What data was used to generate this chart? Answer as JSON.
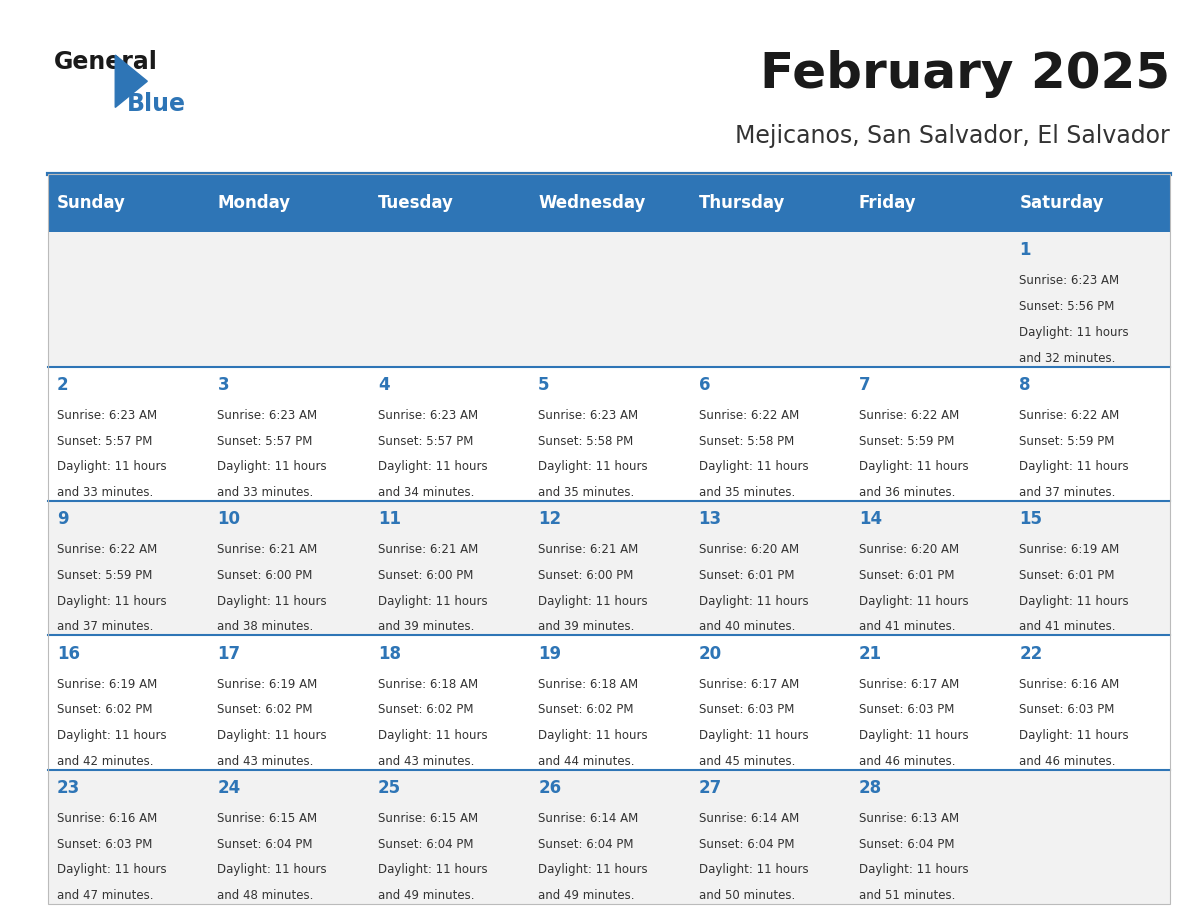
{
  "title": "February 2025",
  "subtitle": "Mejicanos, San Salvador, El Salvador",
  "header_bg": "#2E75B6",
  "header_text_color": "#FFFFFF",
  "cell_bg_odd": "#F2F2F2",
  "cell_bg_even": "#FFFFFF",
  "day_number_color": "#2E75B6",
  "cell_text_color": "#333333",
  "separator_color": "#2E75B6",
  "days_of_week": [
    "Sunday",
    "Monday",
    "Tuesday",
    "Wednesday",
    "Thursday",
    "Friday",
    "Saturday"
  ],
  "weeks": [
    [
      {
        "day": "",
        "sunrise": "",
        "sunset": "",
        "daylight": ""
      },
      {
        "day": "",
        "sunrise": "",
        "sunset": "",
        "daylight": ""
      },
      {
        "day": "",
        "sunrise": "",
        "sunset": "",
        "daylight": ""
      },
      {
        "day": "",
        "sunrise": "",
        "sunset": "",
        "daylight": ""
      },
      {
        "day": "",
        "sunrise": "",
        "sunset": "",
        "daylight": ""
      },
      {
        "day": "",
        "sunrise": "",
        "sunset": "",
        "daylight": ""
      },
      {
        "day": "1",
        "sunrise": "6:23 AM",
        "sunset": "5:56 PM",
        "daylight": "11 hours|and 32 minutes."
      }
    ],
    [
      {
        "day": "2",
        "sunrise": "6:23 AM",
        "sunset": "5:57 PM",
        "daylight": "11 hours|and 33 minutes."
      },
      {
        "day": "3",
        "sunrise": "6:23 AM",
        "sunset": "5:57 PM",
        "daylight": "11 hours|and 33 minutes."
      },
      {
        "day": "4",
        "sunrise": "6:23 AM",
        "sunset": "5:57 PM",
        "daylight": "11 hours|and 34 minutes."
      },
      {
        "day": "5",
        "sunrise": "6:23 AM",
        "sunset": "5:58 PM",
        "daylight": "11 hours|and 35 minutes."
      },
      {
        "day": "6",
        "sunrise": "6:22 AM",
        "sunset": "5:58 PM",
        "daylight": "11 hours|and 35 minutes."
      },
      {
        "day": "7",
        "sunrise": "6:22 AM",
        "sunset": "5:59 PM",
        "daylight": "11 hours|and 36 minutes."
      },
      {
        "day": "8",
        "sunrise": "6:22 AM",
        "sunset": "5:59 PM",
        "daylight": "11 hours|and 37 minutes."
      }
    ],
    [
      {
        "day": "9",
        "sunrise": "6:22 AM",
        "sunset": "5:59 PM",
        "daylight": "11 hours|and 37 minutes."
      },
      {
        "day": "10",
        "sunrise": "6:21 AM",
        "sunset": "6:00 PM",
        "daylight": "11 hours|and 38 minutes."
      },
      {
        "day": "11",
        "sunrise": "6:21 AM",
        "sunset": "6:00 PM",
        "daylight": "11 hours|and 39 minutes."
      },
      {
        "day": "12",
        "sunrise": "6:21 AM",
        "sunset": "6:00 PM",
        "daylight": "11 hours|and 39 minutes."
      },
      {
        "day": "13",
        "sunrise": "6:20 AM",
        "sunset": "6:01 PM",
        "daylight": "11 hours|and 40 minutes."
      },
      {
        "day": "14",
        "sunrise": "6:20 AM",
        "sunset": "6:01 PM",
        "daylight": "11 hours|and 41 minutes."
      },
      {
        "day": "15",
        "sunrise": "6:19 AM",
        "sunset": "6:01 PM",
        "daylight": "11 hours|and 41 minutes."
      }
    ],
    [
      {
        "day": "16",
        "sunrise": "6:19 AM",
        "sunset": "6:02 PM",
        "daylight": "11 hours|and 42 minutes."
      },
      {
        "day": "17",
        "sunrise": "6:19 AM",
        "sunset": "6:02 PM",
        "daylight": "11 hours|and 43 minutes."
      },
      {
        "day": "18",
        "sunrise": "6:18 AM",
        "sunset": "6:02 PM",
        "daylight": "11 hours|and 43 minutes."
      },
      {
        "day": "19",
        "sunrise": "6:18 AM",
        "sunset": "6:02 PM",
        "daylight": "11 hours|and 44 minutes."
      },
      {
        "day": "20",
        "sunrise": "6:17 AM",
        "sunset": "6:03 PM",
        "daylight": "11 hours|and 45 minutes."
      },
      {
        "day": "21",
        "sunrise": "6:17 AM",
        "sunset": "6:03 PM",
        "daylight": "11 hours|and 46 minutes."
      },
      {
        "day": "22",
        "sunrise": "6:16 AM",
        "sunset": "6:03 PM",
        "daylight": "11 hours|and 46 minutes."
      }
    ],
    [
      {
        "day": "23",
        "sunrise": "6:16 AM",
        "sunset": "6:03 PM",
        "daylight": "11 hours|and 47 minutes."
      },
      {
        "day": "24",
        "sunrise": "6:15 AM",
        "sunset": "6:04 PM",
        "daylight": "11 hours|and 48 minutes."
      },
      {
        "day": "25",
        "sunrise": "6:15 AM",
        "sunset": "6:04 PM",
        "daylight": "11 hours|and 49 minutes."
      },
      {
        "day": "26",
        "sunrise": "6:14 AM",
        "sunset": "6:04 PM",
        "daylight": "11 hours|and 49 minutes."
      },
      {
        "day": "27",
        "sunrise": "6:14 AM",
        "sunset": "6:04 PM",
        "daylight": "11 hours|and 50 minutes."
      },
      {
        "day": "28",
        "sunrise": "6:13 AM",
        "sunset": "6:04 PM",
        "daylight": "11 hours|and 51 minutes."
      },
      {
        "day": "",
        "sunrise": "",
        "sunset": "",
        "daylight": ""
      }
    ]
  ],
  "logo_text_general": "General",
  "logo_text_blue": "Blue",
  "logo_triangle_color": "#2E75B6"
}
